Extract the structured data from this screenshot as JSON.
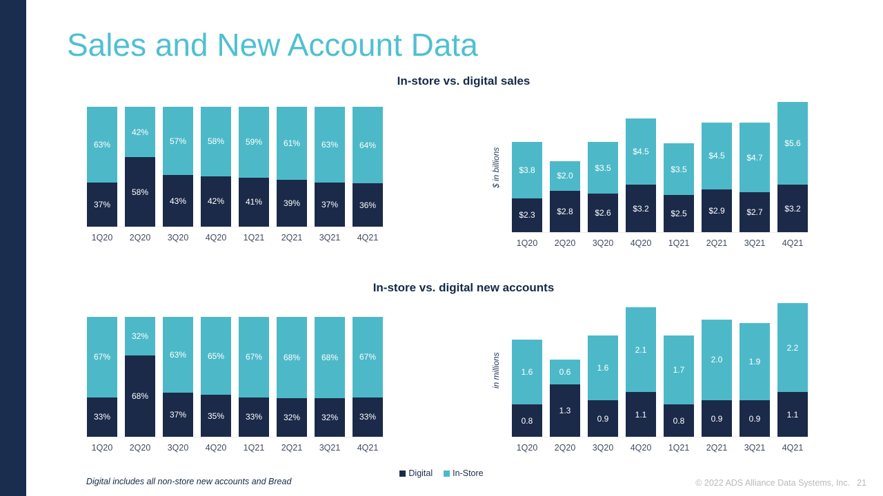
{
  "slide": {
    "title": "Sales and New Account Data",
    "footnote": "Digital includes all non-store new accounts and Bread",
    "copyright": "© 2022 ADS Alliance Data Systems, Inc.",
    "page_number": "21"
  },
  "colors": {
    "digital": "#1b2a49",
    "instore": "#4db9c8",
    "title_accent": "#4fc0d1",
    "left_stripe": "#1b2d4f"
  },
  "legend": {
    "position": "bottom-center",
    "items": [
      {
        "label": "Digital",
        "color": "#1b2a49"
      },
      {
        "label": "In-Store",
        "color": "#4db9c8"
      }
    ]
  },
  "chart_data": [
    {
      "type": "bar",
      "stacked": true,
      "normalized": true,
      "title": "In-store vs. digital sales",
      "xlabel": "",
      "ylabel": "",
      "categories": [
        "1Q20",
        "2Q20",
        "3Q20",
        "4Q20",
        "1Q21",
        "2Q21",
        "3Q21",
        "4Q21"
      ],
      "series": [
        {
          "name": "Digital",
          "color": "#1b2a49",
          "label_format": "percent",
          "values": [
            37,
            58,
            43,
            42,
            41,
            39,
            37,
            36
          ]
        },
        {
          "name": "In-Store",
          "color": "#4db9c8",
          "label_format": "percent",
          "values": [
            63,
            42,
            57,
            58,
            59,
            61,
            63,
            64
          ]
        }
      ]
    },
    {
      "type": "bar",
      "stacked": true,
      "normalized": false,
      "title": "In-store vs. digital sales",
      "xlabel": "",
      "ylabel": "$ in billions",
      "categories": [
        "1Q20",
        "2Q20",
        "3Q20",
        "4Q20",
        "1Q21",
        "2Q21",
        "3Q21",
        "4Q21"
      ],
      "series": [
        {
          "name": "Digital",
          "color": "#1b2a49",
          "label_format": "dollar",
          "values": [
            2.3,
            2.8,
            2.6,
            3.2,
            2.5,
            2.9,
            2.7,
            3.2
          ]
        },
        {
          "name": "In-Store",
          "color": "#4db9c8",
          "label_format": "dollar",
          "values": [
            3.8,
            2.0,
            3.5,
            4.5,
            3.5,
            4.5,
            4.7,
            5.6
          ]
        }
      ]
    },
    {
      "type": "bar",
      "stacked": true,
      "normalized": true,
      "title": "In-store vs. digital new accounts",
      "xlabel": "",
      "ylabel": "",
      "categories": [
        "1Q20",
        "2Q20",
        "3Q20",
        "4Q20",
        "1Q21",
        "2Q21",
        "3Q21",
        "4Q21"
      ],
      "series": [
        {
          "name": "Digital",
          "color": "#1b2a49",
          "label_format": "percent",
          "values": [
            33,
            68,
            37,
            35,
            33,
            32,
            32,
            33
          ]
        },
        {
          "name": "In-Store",
          "color": "#4db9c8",
          "label_format": "percent",
          "values": [
            67,
            32,
            63,
            65,
            67,
            68,
            68,
            67
          ]
        }
      ]
    },
    {
      "type": "bar",
      "stacked": true,
      "normalized": false,
      "title": "In-store vs. digital new accounts",
      "xlabel": "",
      "ylabel": "in millions",
      "categories": [
        "1Q20",
        "2Q20",
        "3Q20",
        "4Q20",
        "1Q21",
        "2Q21",
        "3Q21",
        "4Q21"
      ],
      "series": [
        {
          "name": "Digital",
          "color": "#1b2a49",
          "label_format": "number",
          "values": [
            0.8,
            1.3,
            0.9,
            1.1,
            0.8,
            0.9,
            0.9,
            1.1
          ]
        },
        {
          "name": "In-Store",
          "color": "#4db9c8",
          "label_format": "number",
          "values": [
            1.6,
            0.6,
            1.6,
            2.1,
            1.7,
            2.0,
            1.9,
            2.2
          ]
        }
      ]
    }
  ]
}
